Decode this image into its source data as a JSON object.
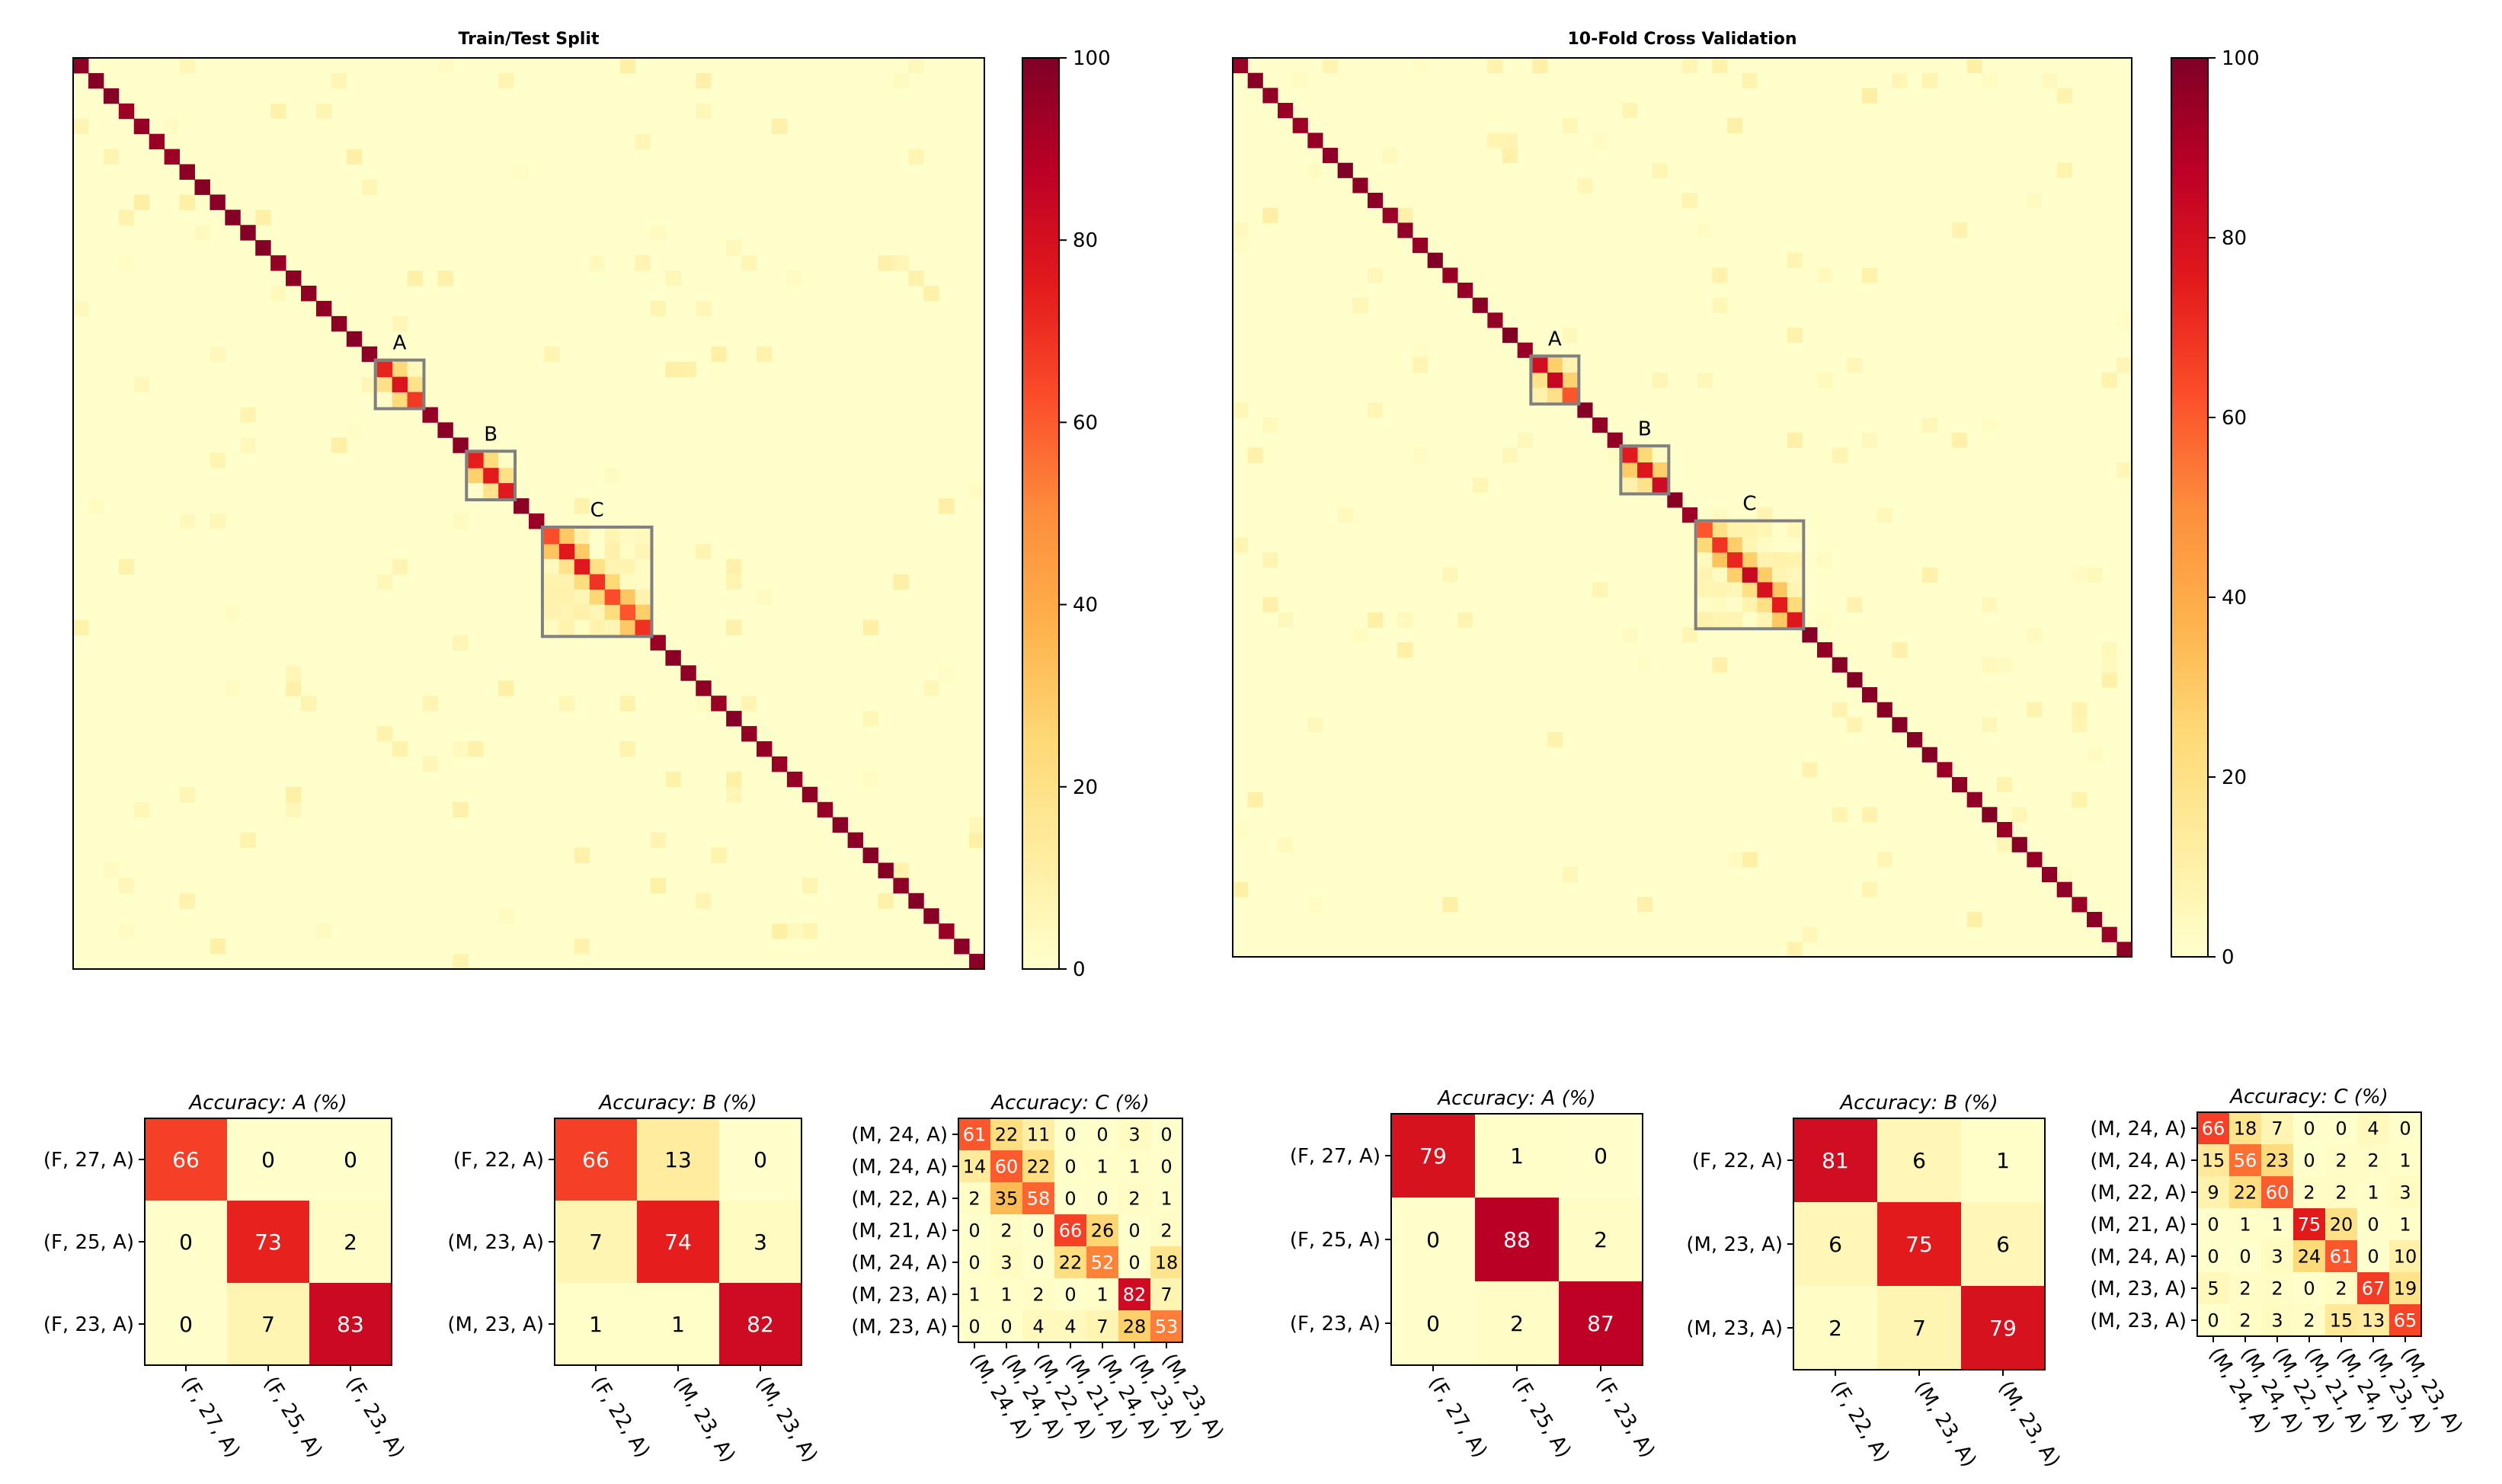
{
  "colors": {
    "cmap": [
      "#ffffcc",
      "#ffeda0",
      "#fed976",
      "#feb24c",
      "#fd8d3c",
      "#fc4e2a",
      "#e31a1c",
      "#bd0026",
      "#800026"
    ],
    "box": "#808080",
    "axis": "#000000",
    "background": "#ffffff"
  },
  "chart_data": [
    {
      "type": "heatmap",
      "title": "Train/Test Split",
      "n_classes": 60,
      "diagonal_note": "full confusion matrix, dark diagonal, near-zero off-diagonal",
      "colorbar": {
        "min": 0,
        "max": 100,
        "ticks": [
          "0",
          "20",
          "40",
          "60",
          "80",
          "100"
        ]
      },
      "highlight_boxes": [
        {
          "label": "A",
          "size": 3
        },
        {
          "label": "B",
          "size": 3
        },
        {
          "label": "C",
          "size": 7
        }
      ]
    },
    {
      "type": "heatmap",
      "title": "10-Fold Cross Validation",
      "n_classes": 60,
      "diagonal_note": "full confusion matrix, dark diagonal, near-zero off-diagonal",
      "colorbar": {
        "min": 0,
        "max": 100,
        "ticks": [
          "0",
          "20",
          "40",
          "60",
          "80",
          "100"
        ]
      },
      "highlight_boxes": [
        {
          "label": "A",
          "size": 3
        },
        {
          "label": "B",
          "size": 3
        },
        {
          "label": "C",
          "size": 7
        }
      ]
    },
    {
      "type": "heatmap",
      "title": "Accuracy: A (%)",
      "labels": [
        "(F, 27, A)",
        "(F, 25, A)",
        "(F, 23, A)"
      ],
      "matrix": [
        [
          66,
          0,
          0
        ],
        [
          0,
          73,
          2
        ],
        [
          0,
          7,
          83
        ]
      ]
    },
    {
      "type": "heatmap",
      "title": "Accuracy: B (%)",
      "labels": [
        "(F, 22, A)",
        "(M, 23, A)",
        "(M, 23, A)"
      ],
      "matrix": [
        [
          66,
          13,
          0
        ],
        [
          7,
          74,
          3
        ],
        [
          1,
          1,
          82
        ]
      ]
    },
    {
      "type": "heatmap",
      "title": "Accuracy: C (%)",
      "labels": [
        "(M, 24, A)",
        "(M, 24, A)",
        "(M, 22, A)",
        "(M, 21, A)",
        "(M, 24, A)",
        "(M, 23, A)",
        "(M, 23, A)"
      ],
      "matrix": [
        [
          61,
          22,
          11,
          0,
          0,
          3,
          0
        ],
        [
          14,
          60,
          22,
          0,
          1,
          1,
          0
        ],
        [
          2,
          35,
          58,
          0,
          0,
          2,
          1
        ],
        [
          0,
          2,
          0,
          66,
          26,
          0,
          2
        ],
        [
          0,
          3,
          0,
          22,
          52,
          0,
          18
        ],
        [
          1,
          1,
          2,
          0,
          1,
          82,
          7
        ],
        [
          0,
          0,
          4,
          4,
          7,
          28,
          53
        ]
      ]
    },
    {
      "type": "heatmap",
      "title": "Accuracy: A (%)",
      "labels": [
        "(F, 27, A)",
        "(F, 25, A)",
        "(F, 23, A)"
      ],
      "matrix": [
        [
          79,
          1,
          0
        ],
        [
          0,
          88,
          2
        ],
        [
          0,
          2,
          87
        ]
      ]
    },
    {
      "type": "heatmap",
      "title": "Accuracy: B (%)",
      "labels": [
        "(F, 22, A)",
        "(M, 23, A)",
        "(M, 23, A)"
      ],
      "matrix": [
        [
          81,
          6,
          1
        ],
        [
          6,
          75,
          6
        ],
        [
          2,
          7,
          79
        ]
      ]
    },
    {
      "type": "heatmap",
      "title": "Accuracy: C (%)",
      "labels": [
        "(M, 24, A)",
        "(M, 24, A)",
        "(M, 22, A)",
        "(M, 21, A)",
        "(M, 24, A)",
        "(M, 23, A)",
        "(M, 23, A)"
      ],
      "matrix": [
        [
          66,
          18,
          7,
          0,
          0,
          4,
          0
        ],
        [
          15,
          56,
          23,
          0,
          2,
          2,
          1
        ],
        [
          9,
          22,
          60,
          2,
          2,
          1,
          3
        ],
        [
          0,
          1,
          1,
          75,
          20,
          0,
          1
        ],
        [
          0,
          0,
          3,
          24,
          61,
          0,
          10
        ],
        [
          5,
          2,
          2,
          0,
          2,
          67,
          19
        ],
        [
          0,
          2,
          3,
          2,
          15,
          13,
          65
        ]
      ]
    }
  ]
}
